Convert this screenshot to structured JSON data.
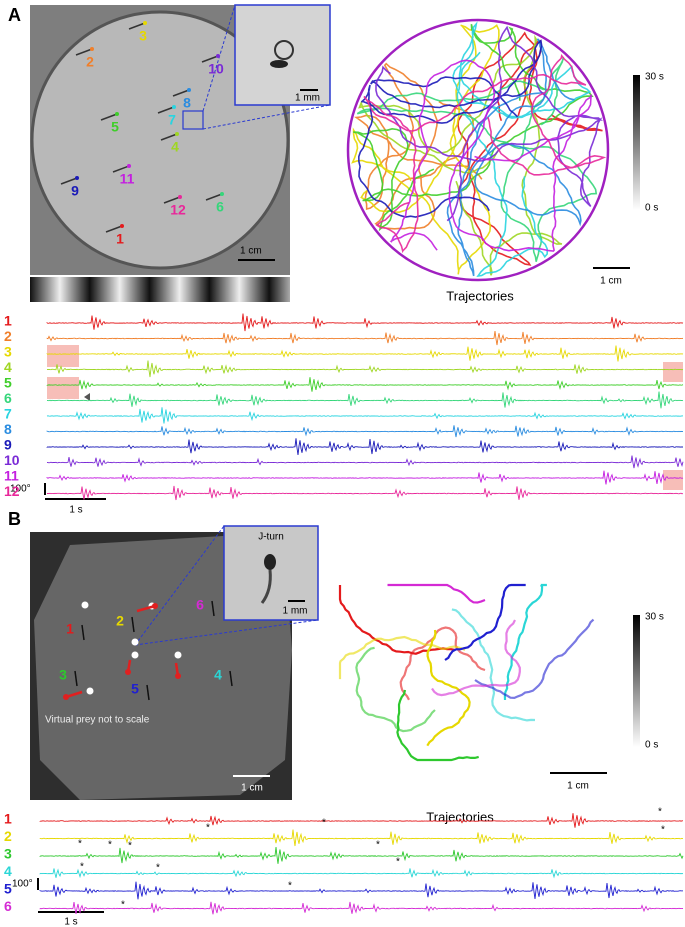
{
  "panels": [
    {
      "label": "A",
      "ids": [
        "1",
        "2",
        "3",
        "4",
        "5",
        "6",
        "7",
        "8",
        "9",
        "10",
        "11",
        "12"
      ],
      "colors": [
        "#e41a1c",
        "#f07f2a",
        "#e6d800",
        "#9fd622",
        "#3fce2a",
        "#35d67a",
        "#29d4e0",
        "#2a8ce0",
        "#1a1ab8",
        "#7a2ad6",
        "#c41fe0",
        "#e8289a"
      ],
      "inset_scale": "1 mm",
      "image_scale": "1 cm",
      "colorbar": {
        "top": "30 s",
        "bottom": "0 s"
      },
      "trajectory_scale": "1 cm",
      "trajectories_title": "Trajectories",
      "trace_scale": {
        "amplitude": "100°",
        "time": "1 s"
      }
    },
    {
      "label": "B",
      "ids": [
        "1",
        "2",
        "3",
        "4",
        "5",
        "6"
      ],
      "colors": [
        "#e41a1c",
        "#e6d800",
        "#2ec82e",
        "#2ad6d6",
        "#2020d0",
        "#d42ad4"
      ],
      "inset_title": "J-turn",
      "inset_scale": "1 mm",
      "image_scale": "1 cm",
      "note": "Virtual prey not to scale",
      "colorbar": {
        "top": "30 s",
        "bottom": "0 s"
      },
      "trajectory_scale": "1 cm",
      "trajectories_title": "Trajectories",
      "trace_scale": {
        "amplitude": "100°",
        "time": "1 s"
      },
      "marker": "*"
    }
  ]
}
